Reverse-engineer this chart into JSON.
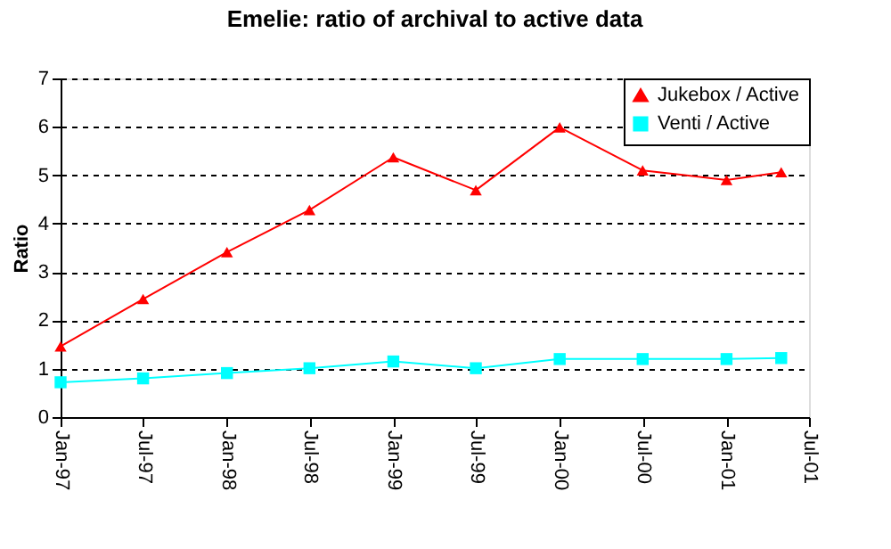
{
  "chart_data": {
    "type": "line",
    "title": "Emelie: ratio of archival to active data",
    "ylabel": "Ratio",
    "x": [
      "1997-01",
      "1997-07",
      "1998-01",
      "1998-07",
      "1999-01",
      "1999-07",
      "2000-01",
      "2000-07",
      "2001-01",
      "2001-05"
    ],
    "series": [
      {
        "name": "Jukebox / Active",
        "color": "#ff0000",
        "marker": "triangle",
        "values": [
          1.46,
          2.44,
          3.41,
          4.28,
          5.37,
          4.69,
          5.99,
          5.1,
          4.9,
          5.06
        ]
      },
      {
        "name": "Venti / Active",
        "color": "#00ffff",
        "marker": "square",
        "values": [
          0.72,
          0.8,
          0.91,
          1.01,
          1.15,
          1.01,
          1.2,
          1.2,
          1.2,
          1.22
        ]
      }
    ],
    "xlim": [
      "1997-01",
      "2001-07"
    ],
    "xticks": [
      {
        "value": "1997-01",
        "label": "Jan-97"
      },
      {
        "value": "1997-07",
        "label": "Jul-97"
      },
      {
        "value": "1998-01",
        "label": "Jan-98"
      },
      {
        "value": "1998-07",
        "label": "Jul-98"
      },
      {
        "value": "1999-01",
        "label": "Jan-99"
      },
      {
        "value": "1999-07",
        "label": "Jul-99"
      },
      {
        "value": "2000-01",
        "label": "Jan-00"
      },
      {
        "value": "2000-07",
        "label": "Jul-00"
      },
      {
        "value": "2001-01",
        "label": "Jan-01"
      },
      {
        "value": "2001-07",
        "label": "Jul-01"
      }
    ],
    "ylim": [
      0,
      7
    ],
    "yticks": [
      0,
      1,
      2,
      3,
      4,
      5,
      6,
      7
    ],
    "grid": "y",
    "legend": "top right",
    "line_style": "solid"
  }
}
